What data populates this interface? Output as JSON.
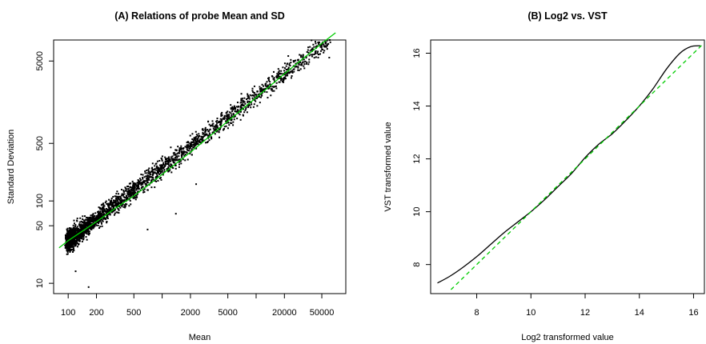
{
  "chart_data": [
    {
      "type": "scatter",
      "title": "(A) Relations of probe Mean and SD",
      "xlabel": "Mean",
      "ylabel": "Standard Deviation",
      "x_scale": "log",
      "y_scale": "log",
      "xlim": [
        70,
        90000
      ],
      "ylim": [
        7.5,
        9000
      ],
      "x_ticks": [
        100,
        200,
        500,
        1000,
        2000,
        5000,
        10000,
        20000,
        50000
      ],
      "x_tick_labels": [
        "100",
        "200",
        "500",
        "",
        "2000",
        "5000",
        "",
        "20000",
        "50000"
      ],
      "y_ticks": [
        10,
        50,
        100,
        500,
        5000
      ],
      "y_tick_labels": [
        "10",
        "50",
        "100",
        "500",
        "5000"
      ],
      "series": [
        {
          "kind": "points",
          "color": "#000000",
          "description_points_cloud": [
            [
              105,
              28
            ],
            [
              110,
              32
            ],
            [
              115,
              25
            ],
            [
              120,
              35
            ],
            [
              125,
              40
            ],
            [
              130,
              30
            ],
            [
              135,
              45
            ],
            [
              140,
              38
            ],
            [
              145,
              50
            ],
            [
              150,
              42
            ],
            [
              160,
              55
            ],
            [
              170,
              48
            ],
            [
              180,
              60
            ],
            [
              190,
              52
            ],
            [
              200,
              65
            ],
            [
              220,
              58
            ],
            [
              240,
              70
            ],
            [
              260,
              75
            ],
            [
              280,
              68
            ],
            [
              300,
              85
            ],
            [
              330,
              90
            ],
            [
              360,
              95
            ],
            [
              400,
              110
            ],
            [
              450,
              120
            ],
            [
              500,
              135
            ],
            [
              560,
              150
            ],
            [
              620,
              160
            ],
            [
              700,
              185
            ],
            [
              800,
              210
            ],
            [
              900,
              230
            ],
            [
              1000,
              250
            ],
            [
              1150,
              280
            ],
            [
              1300,
              310
            ],
            [
              1500,
              350
            ],
            [
              1700,
              400
            ],
            [
              2000,
              460
            ],
            [
              2300,
              520
            ],
            [
              2700,
              600
            ],
            [
              3100,
              700
            ],
            [
              3600,
              800
            ],
            [
              4200,
              920
            ],
            [
              5000,
              1100
            ],
            [
              6000,
              1300
            ],
            [
              7500,
              1600
            ],
            [
              9000,
              1900
            ],
            [
              11000,
              2300
            ],
            [
              14000,
              2800
            ],
            [
              18000,
              3500
            ],
            [
              23000,
              4400
            ],
            [
              30000,
              5600
            ],
            [
              40000,
              7000
            ],
            [
              55000,
              8200
            ],
            [
              165,
              9
            ],
            [
              120,
              14
            ],
            [
              700,
              45
            ],
            [
              1400,
              70
            ],
            [
              2300,
              160
            ],
            [
              60000,
              5500
            ]
          ]
        },
        {
          "kind": "line",
          "color": "#00cc00",
          "x": [
            80,
            100,
            150,
            200,
            300,
            500,
            1000,
            2000,
            5000,
            10000,
            20000,
            50000,
            70000
          ],
          "y": [
            27,
            33,
            45,
            56,
            78,
            115,
            210,
            390,
            930,
            1800,
            3500,
            8200,
            11000
          ]
        }
      ]
    },
    {
      "type": "line",
      "title": "(B) Log2 vs. VST",
      "xlabel": "Log2 transformed value",
      "ylabel": "VST transformed value",
      "xlim": [
        6.3,
        16.4
      ],
      "ylim": [
        6.9,
        16.5
      ],
      "x_ticks": [
        8,
        10,
        12,
        14,
        16
      ],
      "y_ticks": [
        8,
        10,
        12,
        14,
        16
      ],
      "series": [
        {
          "kind": "solid",
          "color": "#000000",
          "x": [
            6.55,
            7.0,
            7.5,
            8.0,
            8.5,
            9.0,
            9.5,
            10.0,
            10.5,
            11.0,
            11.5,
            12.0,
            12.5,
            13.0,
            13.5,
            14.0,
            14.5,
            15.0,
            15.5,
            15.9,
            16.25
          ],
          "y": [
            7.3,
            7.55,
            7.9,
            8.3,
            8.75,
            9.2,
            9.6,
            10.0,
            10.45,
            10.95,
            11.45,
            12.05,
            12.55,
            12.95,
            13.45,
            14.0,
            14.65,
            15.4,
            16.0,
            16.25,
            16.28
          ]
        },
        {
          "kind": "dashed",
          "color": "#00cc00",
          "x": [
            7.05,
            16.35
          ],
          "y": [
            7.05,
            16.35
          ]
        }
      ]
    }
  ]
}
